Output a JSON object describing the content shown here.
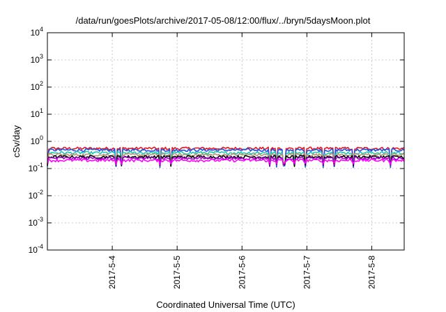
{
  "chart_data": {
    "type": "line",
    "title": "/data/run/goesPlots/archive/2017-05-08/12:00/flux/../bryn/5daysMoon.plot",
    "xlabel": "Coordinated Universal Time (UTC)",
    "ylabel": "cSv/day",
    "yscale": "log",
    "xlim": [
      "2017-05-03T00:00",
      "2017-05-08T12:00"
    ],
    "ylim": [
      0.0001,
      10000
    ],
    "grid": true,
    "x_ticks": [
      "2017-5-4",
      "2017-5-5",
      "2017-5-6",
      "2017-5-7",
      "2017-5-8"
    ],
    "y_ticks": [
      {
        "base": "10",
        "exp": "4"
      },
      {
        "base": "10",
        "exp": "3"
      },
      {
        "base": "10",
        "exp": "2"
      },
      {
        "base": "10",
        "exp": "1"
      },
      {
        "base": "10",
        "exp": "0"
      },
      {
        "base": "10",
        "exp": "-1"
      },
      {
        "base": "10",
        "exp": "-2"
      },
      {
        "base": "10",
        "exp": "-3"
      },
      {
        "base": "10",
        "exp": "-4"
      }
    ],
    "series": [
      {
        "color": "#e8141e",
        "level": 0.55,
        "dip": 0.14
      },
      {
        "color": "#1e50e6",
        "level": 0.48,
        "dip": 0.12
      },
      {
        "color": "#20c8b4",
        "level": 0.38,
        "dip": 0.14
      },
      {
        "color": "#b4966e",
        "level": 0.32,
        "dip": 0.14
      },
      {
        "color": "#000000",
        "level": 0.27,
        "dip": 0.13
      },
      {
        "color": "#a000c8",
        "level": 0.24,
        "dip": 0.14
      },
      {
        "color": "#ff00ff",
        "level": 0.2,
        "dip": 0.16
      }
    ]
  }
}
